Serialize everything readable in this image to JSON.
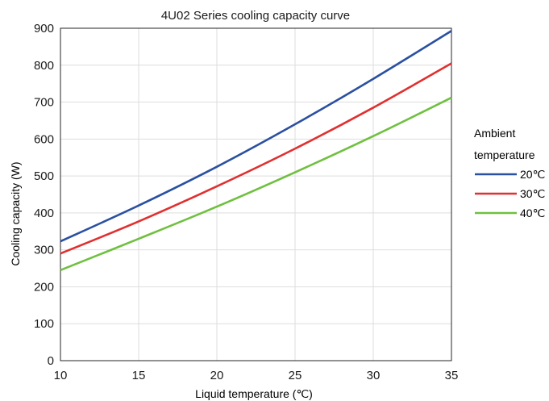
{
  "chart_data": {
    "type": "line",
    "title": "4U02 Series cooling capacity curve",
    "xlabel": "Liquid temperature (℃)",
    "ylabel": "Cooling capacity (W)",
    "xlim": [
      10,
      35
    ],
    "ylim": [
      0,
      900
    ],
    "x_ticks": [
      "10",
      "15",
      "20",
      "25",
      "30",
      "35"
    ],
    "y_ticks": [
      "0",
      "100",
      "200",
      "300",
      "400",
      "500",
      "600",
      "700",
      "800",
      "900"
    ],
    "grid": true,
    "legend": {
      "title_line1": "Ambient",
      "title_line2": "temperature",
      "placement": "right"
    },
    "x": [
      10,
      15,
      20,
      25,
      30,
      35
    ],
    "series": [
      {
        "name": "20℃",
        "color": "#2a50a0",
        "values": [
          323,
          420,
          525,
          640,
          763,
          893
        ]
      },
      {
        "name": "30℃",
        "color": "#e03030",
        "values": [
          290,
          377,
          472,
          574,
          685,
          805
        ]
      },
      {
        "name": "40℃",
        "color": "#70c040",
        "values": [
          245,
          330,
          417,
          510,
          608,
          712
        ]
      }
    ]
  }
}
